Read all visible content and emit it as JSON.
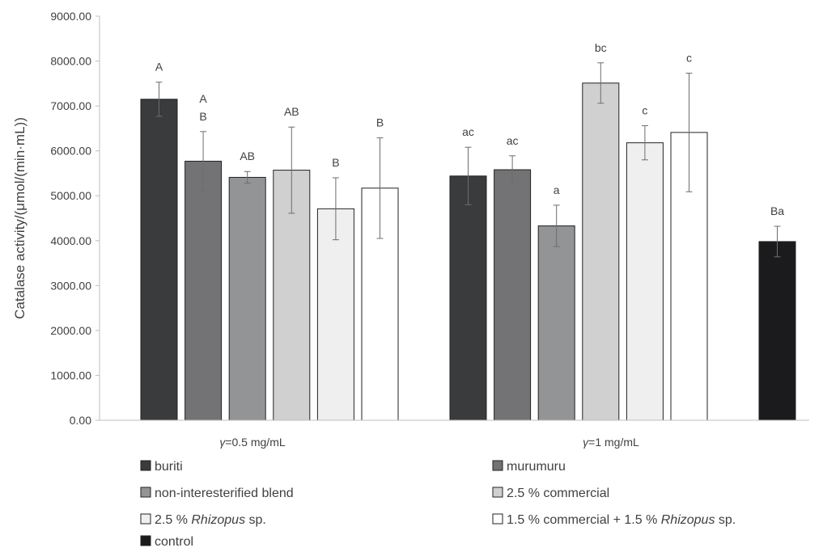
{
  "chart_data": {
    "type": "bar",
    "ylabel": "Catalase activity/(μmol/(min·mL))",
    "ylim": [
      0,
      9000
    ],
    "yticks": [
      "0.00",
      "1000.00",
      "2000.00",
      "3000.00",
      "4000.00",
      "5000.00",
      "6000.00",
      "7000.00",
      "8000.00",
      "9000.00"
    ],
    "grid": false,
    "legend_position": "bottom",
    "groups": [
      {
        "label_var": "γ",
        "label_rest": "=0.5 mg/mL",
        "bars": [
          {
            "series": "buriti",
            "value": 7150,
            "err": 380,
            "sig": [
              "A"
            ]
          },
          {
            "series": "murumuru",
            "value": 5770,
            "err": 660,
            "sig": [
              "A",
              "B"
            ]
          },
          {
            "series": "non-interesterified blend",
            "value": 5410,
            "err": 130,
            "sig": [
              "AB"
            ]
          },
          {
            "series": "2.5 % commercial",
            "value": 5570,
            "err": 960,
            "sig": [
              "AB"
            ]
          },
          {
            "series": "2.5 % Rhizopus sp.",
            "value": 4710,
            "err": 690,
            "sig": [
              "B"
            ]
          },
          {
            "series": "1.5 % commercial + 1.5 % Rhizopus sp.",
            "value": 5170,
            "err": 1120,
            "sig": [
              "B"
            ]
          }
        ]
      },
      {
        "label_var": "γ",
        "label_rest": "=1 mg/mL",
        "bars": [
          {
            "series": "buriti",
            "value": 5440,
            "err": 640,
            "sig": [
              "ac"
            ]
          },
          {
            "series": "murumuru",
            "value": 5580,
            "err": 310,
            "sig": [
              "ac"
            ]
          },
          {
            "series": "non-interesterified blend",
            "value": 4330,
            "err": 460,
            "sig": [
              "a"
            ]
          },
          {
            "series": "2.5 % commercial",
            "value": 7510,
            "err": 450,
            "sig": [
              "bc"
            ]
          },
          {
            "series": "2.5 % Rhizopus sp.",
            "value": 6180,
            "err": 380,
            "sig": [
              "c"
            ]
          },
          {
            "series": "1.5 % commercial + 1.5 % Rhizopus sp.",
            "value": 6410,
            "err": 1320,
            "sig": [
              "c"
            ]
          },
          {
            "series": "control",
            "value": 3980,
            "err": 340,
            "sig": [
              "Ba"
            ]
          }
        ]
      }
    ],
    "series": [
      {
        "name": "buriti",
        "color": "#3a3b3d",
        "legend": [
          {
            "text": "buriti",
            "italic": false
          }
        ]
      },
      {
        "name": "murumuru",
        "color": "#737375",
        "legend": [
          {
            "text": "murumuru",
            "italic": false
          }
        ]
      },
      {
        "name": "non-interesterified blend",
        "color": "#939496",
        "legend": [
          {
            "text": "non-interesterified blend",
            "italic": false
          }
        ]
      },
      {
        "name": "2.5 % commercial",
        "color": "#d0d0d1",
        "legend": [
          {
            "text": "2.5 % commercial",
            "italic": false
          }
        ]
      },
      {
        "name": "2.5 % Rhizopus sp.",
        "color": "#efefef",
        "legend": [
          {
            "text": "2.5 % ",
            "italic": false
          },
          {
            "text": "Rhizopus",
            "italic": true
          },
          {
            "text": " sp.",
            "italic": false
          }
        ]
      },
      {
        "name": "1.5 % commercial + 1.5 % Rhizopus sp.",
        "color": "#ffffff",
        "legend": [
          {
            "text": "1.5 % commercial + 1.5 % ",
            "italic": false
          },
          {
            "text": "Rhizopus",
            "italic": true
          },
          {
            "text": " sp.",
            "italic": false
          }
        ]
      },
      {
        "name": "control",
        "color": "#1b1b1d",
        "legend": [
          {
            "text": "control",
            "italic": false
          }
        ]
      }
    ],
    "colors": {
      "axis": "#bfbfbf",
      "bar_stroke": "#222222",
      "error_bar": "#6d6d6d",
      "text": "#404040"
    }
  }
}
